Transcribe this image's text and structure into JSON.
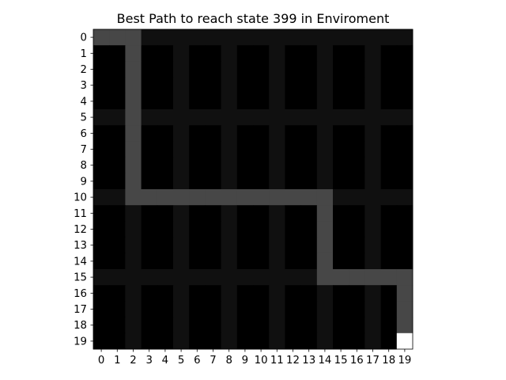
{
  "chart_data": {
    "type": "heatmap",
    "title": "Best Path to reach state 399 in Enviroment",
    "xlabel": "",
    "ylabel": "",
    "x_ticks": [
      "0",
      "1",
      "2",
      "3",
      "4",
      "5",
      "6",
      "7",
      "8",
      "9",
      "10",
      "11",
      "12",
      "13",
      "14",
      "15",
      "16",
      "17",
      "18",
      "19"
    ],
    "y_ticks": [
      "0",
      "1",
      "2",
      "3",
      "4",
      "5",
      "6",
      "7",
      "8",
      "9",
      "10",
      "11",
      "12",
      "13",
      "14",
      "15",
      "16",
      "17",
      "18",
      "19"
    ],
    "grid_size": [
      20,
      20
    ],
    "colormap": "gray",
    "value_scale": {
      "min": 0,
      "max": 1
    },
    "legend": "none",
    "colors": {
      "background": "#000000",
      "corridor": "#101010",
      "path": "#474747",
      "goal": "#ffffff"
    },
    "corridor_rows": [
      0,
      5,
      10,
      15
    ],
    "corridor_cols": [
      2,
      5,
      8,
      11,
      14,
      17
    ],
    "path_cells": [
      [
        0,
        0
      ],
      [
        1,
        0
      ],
      [
        2,
        0
      ],
      [
        2,
        1
      ],
      [
        2,
        2
      ],
      [
        2,
        3
      ],
      [
        2,
        4
      ],
      [
        2,
        5
      ],
      [
        2,
        6
      ],
      [
        2,
        7
      ],
      [
        2,
        8
      ],
      [
        2,
        9
      ],
      [
        2,
        10
      ],
      [
        3,
        10
      ],
      [
        4,
        10
      ],
      [
        5,
        10
      ],
      [
        6,
        10
      ],
      [
        7,
        10
      ],
      [
        8,
        10
      ],
      [
        9,
        10
      ],
      [
        10,
        10
      ],
      [
        11,
        10
      ],
      [
        12,
        10
      ],
      [
        13,
        10
      ],
      [
        14,
        10
      ],
      [
        14,
        11
      ],
      [
        14,
        12
      ],
      [
        14,
        13
      ],
      [
        14,
        14
      ],
      [
        14,
        15
      ],
      [
        15,
        15
      ],
      [
        16,
        15
      ],
      [
        17,
        15
      ],
      [
        18,
        15
      ],
      [
        19,
        15
      ],
      [
        19,
        16
      ],
      [
        19,
        17
      ],
      [
        19,
        18
      ]
    ],
    "goal_cell": [
      19,
      19
    ]
  }
}
